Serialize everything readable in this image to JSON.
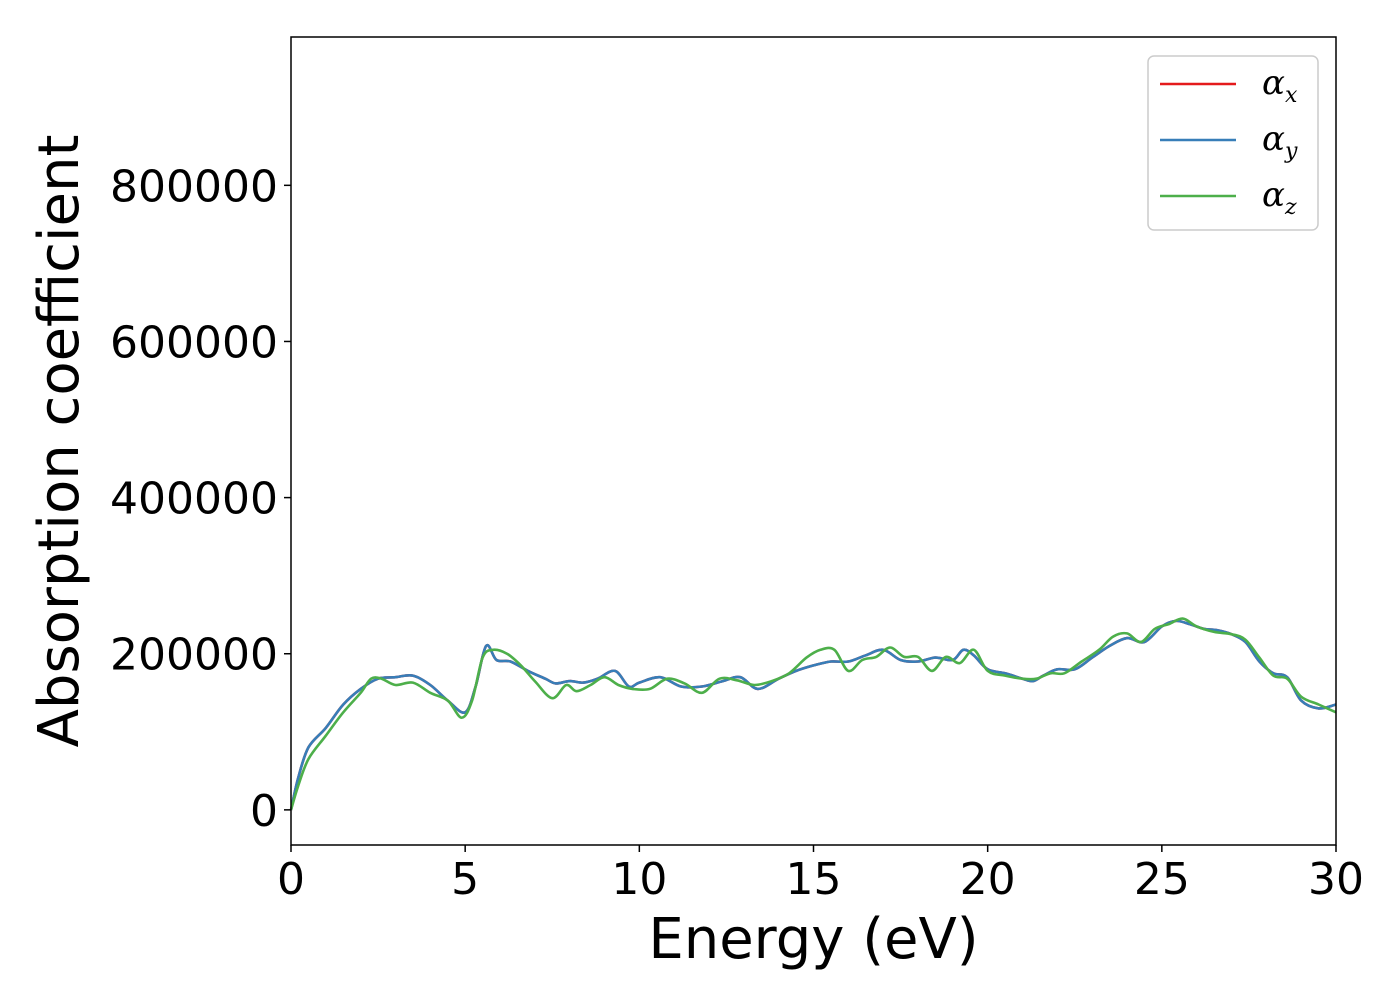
{
  "chart_data": {
    "type": "line",
    "title": "",
    "xlabel": "Energy (eV)",
    "ylabel": "Absorption coefficient",
    "xlim": [
      0,
      30
    ],
    "ylim": [
      -45000,
      990000
    ],
    "xticks": [
      0,
      5,
      10,
      15,
      20,
      25,
      30
    ],
    "yticks": [
      0,
      200000,
      400000,
      600000,
      800000
    ],
    "grid": false,
    "legend": {
      "position": "top-right"
    },
    "series": [
      {
        "name": "αx",
        "symbol": "α",
        "subscript": "x",
        "color": "#e41a1c",
        "x": [
          0,
          0.2,
          0.5,
          1.0,
          1.5,
          2.0,
          2.5,
          3.0,
          3.5,
          4.0,
          4.5,
          5.0,
          5.3,
          5.6,
          5.9,
          6.3,
          6.8,
          7.3,
          7.6,
          8.0,
          8.4,
          8.8,
          9.3,
          9.7,
          10.0,
          10.6,
          11.2,
          11.8,
          12.4,
          12.9,
          13.4,
          14.0,
          14.5,
          15.0,
          15.5,
          16.0,
          16.5,
          17.0,
          17.5,
          18.0,
          18.5,
          19.0,
          19.3,
          19.6,
          20.0,
          20.5,
          21.0,
          21.3,
          21.6,
          22.0,
          22.5,
          23.0,
          23.5,
          24.0,
          24.5,
          25.0,
          25.4,
          25.8,
          26.2,
          26.6,
          27.0,
          27.4,
          27.8,
          28.2,
          28.6,
          29.0,
          29.5,
          30.0
        ],
        "y": [
          0,
          40000,
          80000,
          105000,
          135000,
          155000,
          168000,
          170000,
          172000,
          160000,
          140000,
          125000,
          158000,
          210000,
          192000,
          190000,
          178000,
          168000,
          162000,
          165000,
          163000,
          168000,
          178000,
          158000,
          163000,
          170000,
          158000,
          158000,
          165000,
          170000,
          155000,
          168000,
          178000,
          185000,
          190000,
          190000,
          198000,
          205000,
          192000,
          190000,
          195000,
          192000,
          205000,
          198000,
          180000,
          175000,
          168000,
          165000,
          172000,
          180000,
          180000,
          195000,
          210000,
          220000,
          215000,
          235000,
          242000,
          238000,
          232000,
          230000,
          225000,
          215000,
          190000,
          175000,
          170000,
          140000,
          130000,
          135000
        ]
      },
      {
        "name": "αy",
        "symbol": "α",
        "subscript": "y",
        "color": "#377eb8",
        "x": [
          0,
          0.2,
          0.5,
          1.0,
          1.5,
          2.0,
          2.5,
          3.0,
          3.5,
          4.0,
          4.5,
          5.0,
          5.3,
          5.6,
          5.9,
          6.3,
          6.8,
          7.3,
          7.6,
          8.0,
          8.4,
          8.8,
          9.3,
          9.7,
          10.0,
          10.6,
          11.2,
          11.8,
          12.4,
          12.9,
          13.4,
          14.0,
          14.5,
          15.0,
          15.5,
          16.0,
          16.5,
          17.0,
          17.5,
          18.0,
          18.5,
          19.0,
          19.3,
          19.6,
          20.0,
          20.5,
          21.0,
          21.3,
          21.6,
          22.0,
          22.5,
          23.0,
          23.5,
          24.0,
          24.5,
          25.0,
          25.4,
          25.8,
          26.2,
          26.6,
          27.0,
          27.4,
          27.8,
          28.2,
          28.6,
          29.0,
          29.5,
          30.0
        ],
        "y": [
          0,
          40000,
          80000,
          105000,
          135000,
          155000,
          168000,
          170000,
          172000,
          160000,
          140000,
          125000,
          158000,
          210000,
          192000,
          190000,
          178000,
          168000,
          162000,
          165000,
          163000,
          168000,
          178000,
          158000,
          163000,
          170000,
          158000,
          158000,
          165000,
          170000,
          155000,
          168000,
          178000,
          185000,
          190000,
          190000,
          198000,
          205000,
          192000,
          190000,
          195000,
          192000,
          205000,
          198000,
          180000,
          175000,
          168000,
          165000,
          172000,
          180000,
          180000,
          195000,
          210000,
          220000,
          215000,
          235000,
          242000,
          238000,
          232000,
          230000,
          225000,
          215000,
          190000,
          175000,
          170000,
          140000,
          130000,
          135000
        ]
      },
      {
        "name": "αz",
        "symbol": "α",
        "subscript": "z",
        "color": "#4daf4a",
        "x": [
          0,
          0.2,
          0.5,
          1.0,
          1.5,
          2.0,
          2.3,
          2.6,
          3.0,
          3.5,
          4.0,
          4.5,
          4.9,
          5.2,
          5.5,
          5.8,
          6.2,
          6.6,
          7.0,
          7.5,
          7.9,
          8.2,
          8.6,
          9.0,
          9.4,
          9.8,
          10.3,
          10.8,
          11.3,
          11.8,
          12.3,
          12.8,
          13.3,
          13.8,
          14.3,
          14.8,
          15.2,
          15.6,
          16.0,
          16.4,
          16.8,
          17.2,
          17.6,
          18.0,
          18.4,
          18.8,
          19.2,
          19.6,
          20.0,
          20.5,
          21.0,
          21.4,
          21.8,
          22.2,
          22.7,
          23.2,
          23.6,
          24.0,
          24.4,
          24.8,
          25.2,
          25.6,
          26.0,
          26.5,
          27.0,
          27.4,
          27.8,
          28.2,
          28.6,
          29.0,
          29.5,
          30.0
        ],
        "y": [
          0,
          30000,
          65000,
          95000,
          125000,
          150000,
          168000,
          168000,
          160000,
          163000,
          150000,
          140000,
          118000,
          140000,
          195000,
          205000,
          200000,
          185000,
          165000,
          143000,
          160000,
          152000,
          160000,
          170000,
          160000,
          155000,
          155000,
          168000,
          162000,
          150000,
          168000,
          166000,
          160000,
          165000,
          175000,
          195000,
          205000,
          205000,
          178000,
          192000,
          196000,
          208000,
          196000,
          196000,
          178000,
          196000,
          188000,
          205000,
          178000,
          172000,
          168000,
          168000,
          175000,
          175000,
          190000,
          205000,
          222000,
          226000,
          215000,
          232000,
          238000,
          245000,
          235000,
          228000,
          225000,
          218000,
          195000,
          172000,
          168000,
          145000,
          135000,
          125000
        ]
      }
    ]
  }
}
